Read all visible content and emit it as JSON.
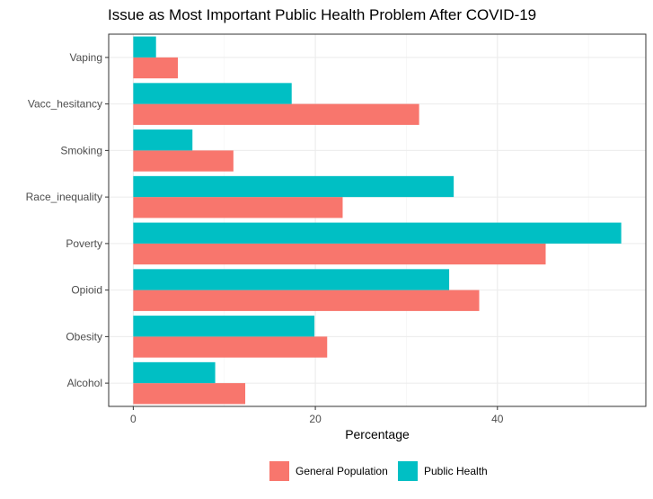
{
  "chart_data": {
    "type": "bar",
    "orientation": "horizontal",
    "title": "Issue as Most Important Public Health Problem After COVID-19",
    "xlabel": "Percentage",
    "ylabel": "",
    "categories": [
      "Alcohol",
      "Obesity",
      "Opioid",
      "Poverty",
      "Race_inequality",
      "Smoking",
      "Vacc_hesitancy",
      "Vaping"
    ],
    "series": [
      {
        "name": "General Population",
        "color": "#F8766D",
        "values": [
          12.3,
          21.3,
          38.0,
          45.3,
          23.0,
          11.0,
          31.4,
          4.9
        ]
      },
      {
        "name": "Public Health",
        "color": "#00BFC4",
        "values": [
          9.0,
          19.9,
          34.7,
          53.6,
          35.2,
          6.5,
          17.4,
          2.5
        ]
      }
    ],
    "xlim": [
      -2.7,
      56.3
    ],
    "xticks": [
      0,
      20,
      40
    ],
    "grid": true,
    "legend_position": "bottom"
  }
}
